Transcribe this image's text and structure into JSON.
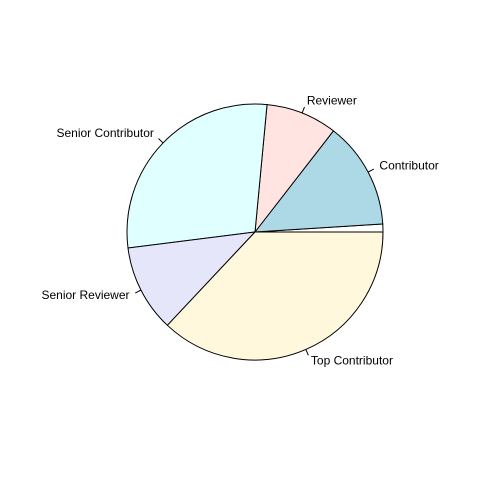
{
  "chart_data": {
    "type": "pie",
    "labels": [
      "",
      "Contributor",
      "Reviewer",
      "Senior Contributor",
      "Senior Reviewer",
      "Top Contributor"
    ],
    "values": [
      1.0,
      13.5,
      9.0,
      28.5,
      11.0,
      37.0
    ],
    "colors": [
      "#ffffff",
      "#add8e6",
      "#ffe4e1",
      "#e0ffff",
      "#e6e6fa",
      "#fff8dc"
    ],
    "start_angle_deg": 0,
    "direction": "counterclockwise"
  }
}
